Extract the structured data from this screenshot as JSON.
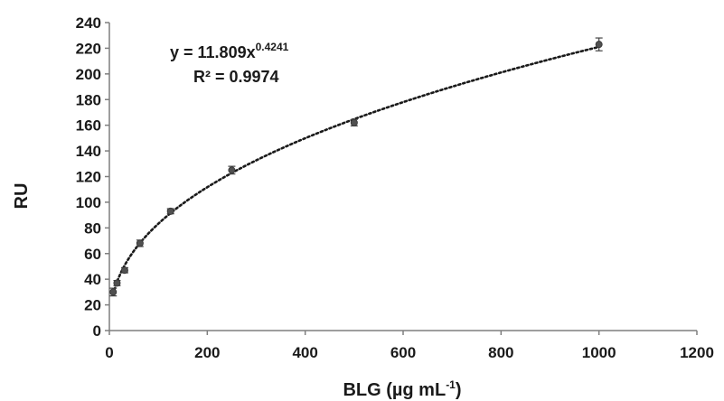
{
  "chart_data": {
    "type": "scatter",
    "xlabel": "BLG (µg mL",
    "xlabel_sup": "-1",
    "xlabel_close": ")",
    "ylabel": "RU",
    "xlim": [
      0,
      1200
    ],
    "ylim": [
      0,
      240
    ],
    "xticks": [
      0,
      200,
      400,
      600,
      800,
      1000,
      1200
    ],
    "yticks": [
      0,
      20,
      40,
      60,
      80,
      100,
      120,
      140,
      160,
      180,
      200,
      220,
      240
    ],
    "grid": false,
    "legend": "none",
    "marker_color": "#505050",
    "trend_color": "#1a1a1a",
    "points": [
      {
        "x": 7.8,
        "y": 30,
        "err": 3
      },
      {
        "x": 15.6,
        "y": 37,
        "err": 2
      },
      {
        "x": 31.25,
        "y": 47,
        "err": 2
      },
      {
        "x": 62.5,
        "y": 68,
        "err": 2.5
      },
      {
        "x": 125,
        "y": 93,
        "err": 2
      },
      {
        "x": 250,
        "y": 125,
        "err": 3
      },
      {
        "x": 500,
        "y": 162,
        "err": 2.5
      },
      {
        "x": 1000,
        "y": 223,
        "err": 5
      }
    ],
    "trendline": {
      "type": "power",
      "a": 11.809,
      "b": 0.4241,
      "x_range": [
        7.8,
        1000
      ],
      "equation_prefix": "y = 11.809x",
      "equation_sup": "0.4241",
      "r2_text": "R² = 0.9974"
    }
  }
}
